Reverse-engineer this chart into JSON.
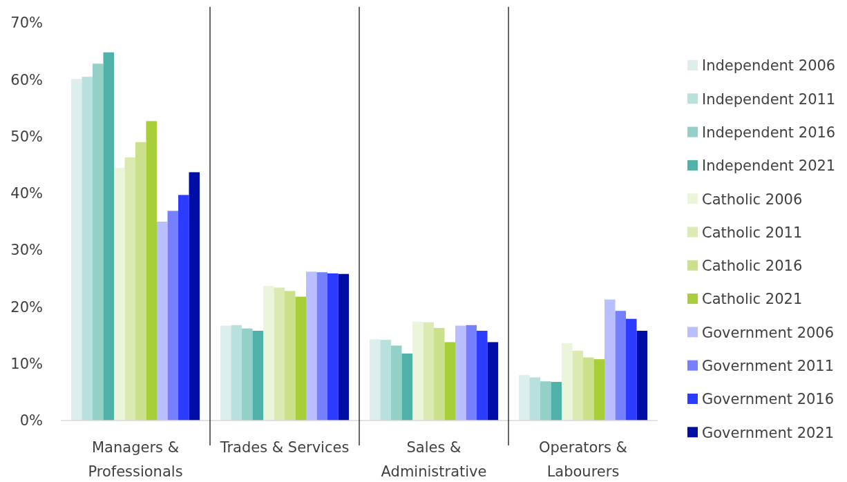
{
  "chart_data": {
    "type": "bar",
    "categories": [
      "Managers & Professionals",
      "Trades & Services",
      "Sales & Administrative",
      "Operators & Labourers"
    ],
    "series": [
      {
        "name": "Independent 2006",
        "color": "#dcefec",
        "values": [
          60.1,
          16.7,
          14.3,
          8.0
        ]
      },
      {
        "name": "Independent 2011",
        "color": "#b8e0dd",
        "values": [
          60.5,
          16.8,
          14.2,
          7.6
        ]
      },
      {
        "name": "Independent 2016",
        "color": "#94d0c8",
        "values": [
          62.8,
          16.2,
          13.2,
          6.9
        ]
      },
      {
        "name": "Independent 2021",
        "color": "#50b2a8",
        "values": [
          64.8,
          15.8,
          11.8,
          6.8
        ]
      },
      {
        "name": "Catholic 2006",
        "color": "#ebf5d9",
        "values": [
          44.5,
          23.7,
          17.4,
          13.6
        ]
      },
      {
        "name": "Catholic 2011",
        "color": "#dbeab0",
        "values": [
          46.3,
          23.4,
          17.3,
          12.3
        ]
      },
      {
        "name": "Catholic 2016",
        "color": "#cbe08a",
        "values": [
          49.0,
          22.8,
          16.3,
          11.1
        ]
      },
      {
        "name": "Catholic 2021",
        "color": "#a8cf3a",
        "values": [
          52.7,
          21.8,
          13.8,
          10.8
        ]
      },
      {
        "name": "Government 2006",
        "color": "#b8befe",
        "values": [
          35.0,
          26.2,
          16.7,
          21.3
        ]
      },
      {
        "name": "Government 2011",
        "color": "#7580fe",
        "values": [
          36.9,
          26.1,
          16.8,
          19.3
        ]
      },
      {
        "name": "Government 2016",
        "color": "#2b3cff",
        "values": [
          39.7,
          25.9,
          15.8,
          17.9
        ]
      },
      {
        "name": "Government 2021",
        "color": "#000ea6",
        "values": [
          43.7,
          25.8,
          13.8,
          15.8
        ]
      }
    ],
    "ylim": [
      0,
      70
    ],
    "yticks": [
      {
        "value": 0,
        "label": "0%"
      },
      {
        "value": 10,
        "label": "10%"
      },
      {
        "value": 20,
        "label": "20%"
      },
      {
        "value": 30,
        "label": "30%"
      },
      {
        "value": 40,
        "label": "40%"
      },
      {
        "value": 50,
        "label": "50%"
      },
      {
        "value": 60,
        "label": "60%"
      },
      {
        "value": 70,
        "label": "70%"
      }
    ],
    "grid": false,
    "legend": "right"
  }
}
